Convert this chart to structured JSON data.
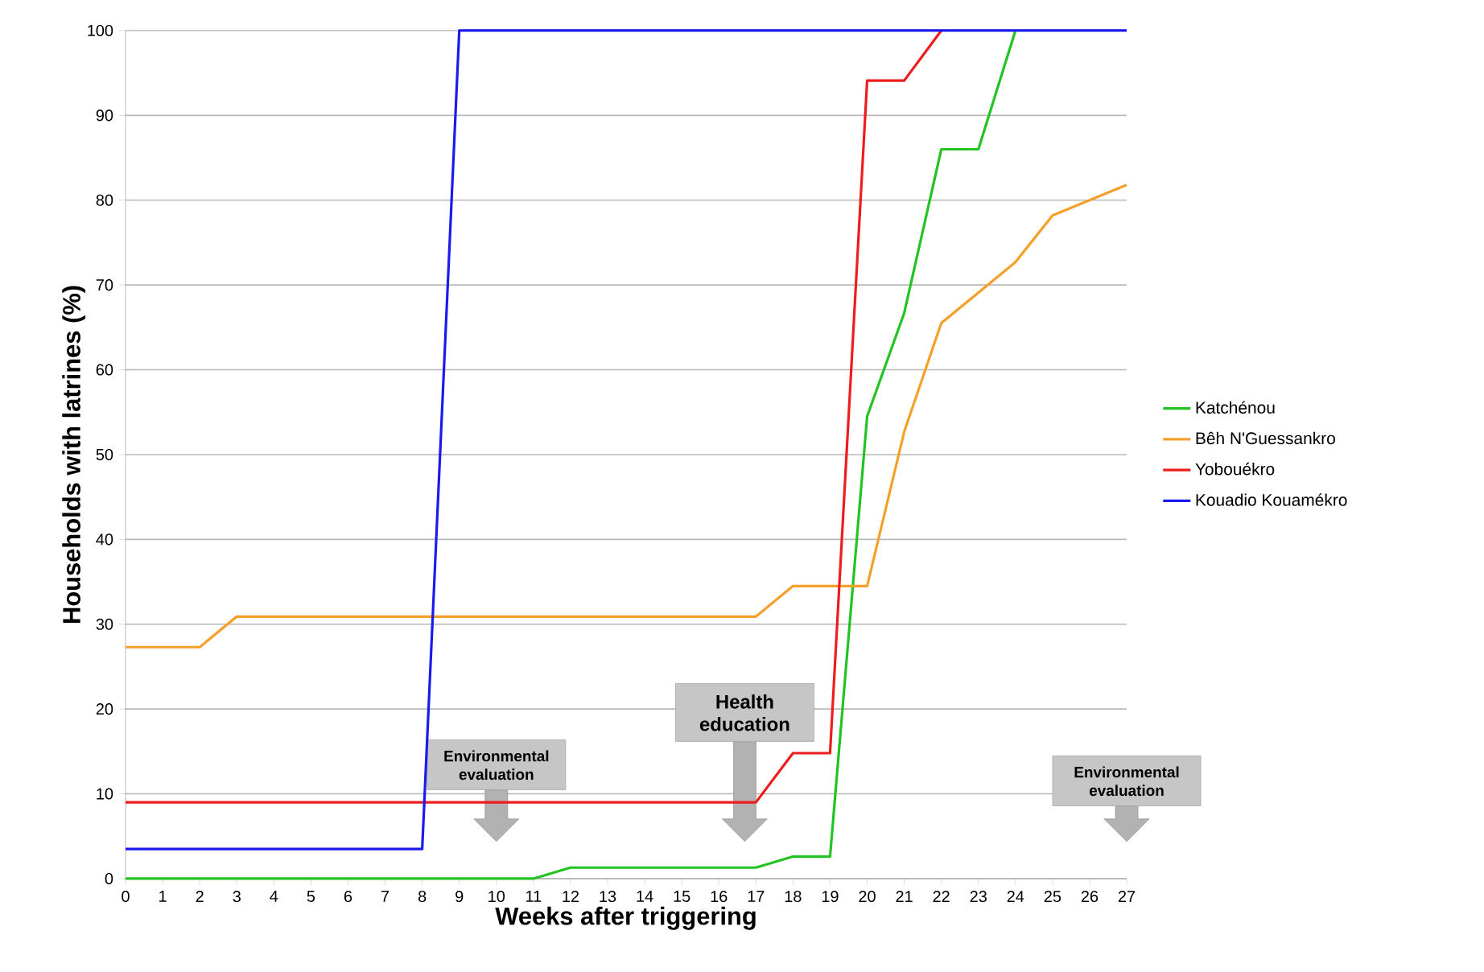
{
  "chart_data": {
    "type": "line",
    "xlabel": "Weeks after triggering",
    "ylabel": "Households with latrines (%)",
    "x": [
      0,
      1,
      2,
      3,
      4,
      5,
      6,
      7,
      8,
      9,
      10,
      11,
      12,
      13,
      14,
      15,
      16,
      17,
      18,
      19,
      20,
      21,
      22,
      23,
      24,
      25,
      26,
      27
    ],
    "series": [
      {
        "name": "Katchénou",
        "color": "#22c322",
        "values": [
          0,
          0,
          0,
          0,
          0,
          0,
          0,
          0,
          0,
          0,
          0,
          0,
          1.3,
          1.3,
          1.3,
          1.3,
          1.3,
          1.3,
          2.6,
          2.6,
          54.5,
          66.7,
          86,
          86,
          100,
          null,
          null,
          null
        ]
      },
      {
        "name": "Bêh N'Guessankro",
        "color": "#f5a02a",
        "values": [
          27.3,
          27.3,
          27.3,
          30.9,
          30.9,
          30.9,
          30.9,
          30.9,
          30.9,
          30.9,
          30.9,
          30.9,
          30.9,
          30.9,
          30.9,
          30.9,
          30.9,
          30.9,
          34.5,
          34.5,
          34.5,
          52.7,
          65.5,
          69.1,
          72.7,
          78.2,
          80,
          81.8
        ]
      },
      {
        "name": "Yobouékro",
        "color": "#ee1c1c",
        "values": [
          9,
          9,
          9,
          9,
          9,
          9,
          9,
          9,
          9,
          9,
          9,
          9,
          9,
          9,
          9,
          9,
          9,
          9,
          14.8,
          14.8,
          94.1,
          94.1,
          100,
          null,
          null,
          null,
          null,
          null
        ]
      },
      {
        "name": "Kouadio Kouamékro",
        "color": "#1a1aee",
        "values": [
          3.5,
          3.5,
          3.5,
          3.5,
          3.5,
          3.5,
          3.5,
          3.5,
          3.5,
          100,
          100,
          100,
          100,
          100,
          100,
          100,
          100,
          100,
          100,
          100,
          100,
          100,
          100,
          100,
          100,
          100,
          100,
          100
        ]
      }
    ],
    "xlim": [
      0,
      27
    ],
    "xticks": [
      0,
      1,
      2,
      3,
      4,
      5,
      6,
      7,
      8,
      9,
      10,
      11,
      12,
      13,
      14,
      15,
      16,
      17,
      18,
      19,
      20,
      21,
      22,
      23,
      24,
      25,
      26,
      27
    ],
    "ylim": [
      0,
      100
    ],
    "yticks": [
      0,
      10,
      20,
      30,
      40,
      50,
      60,
      70,
      80,
      90,
      100
    ],
    "grid": "y",
    "legend": "right",
    "marker": "none",
    "line_style": "solid",
    "annotations": [
      "Environmental evaluation",
      "Health education",
      "Environmental evaluation"
    ]
  }
}
